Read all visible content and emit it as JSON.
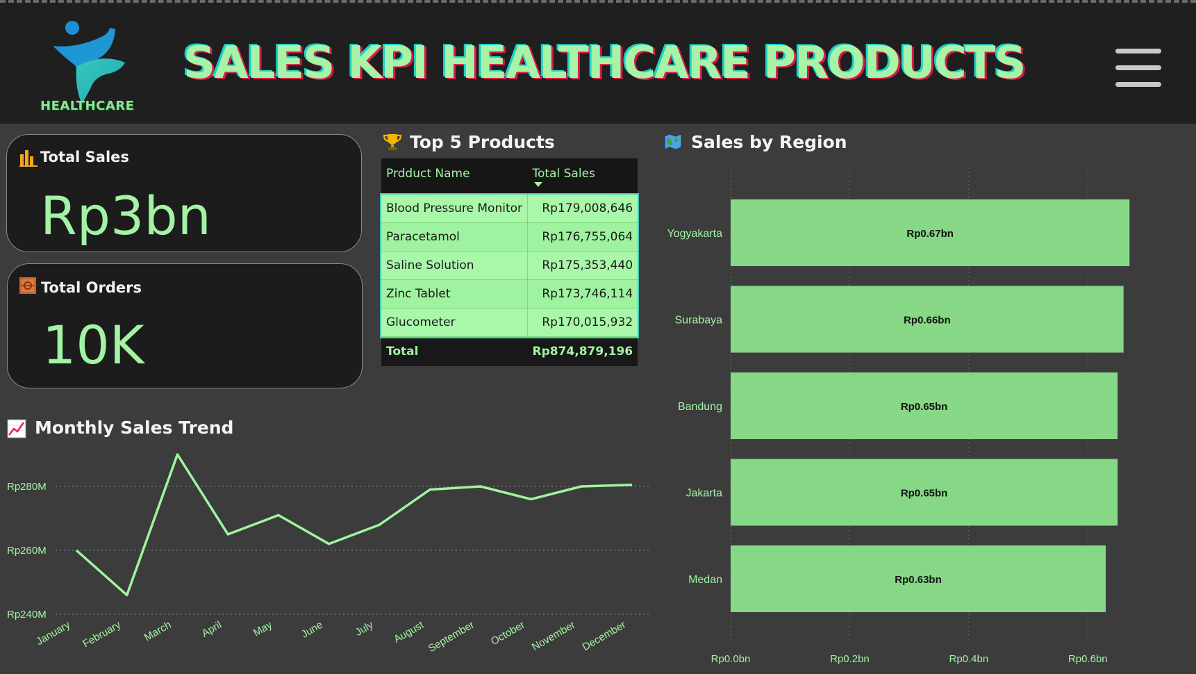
{
  "header": {
    "logo_text": "HEALTHCARE",
    "title": "SALES KPI HEALTHCARE PRODUCTS",
    "menu_icon": "hamburger-menu-icon"
  },
  "kpis": {
    "total_sales": {
      "label": "Total Sales",
      "value": "Rp3bn",
      "icon": "bar-chart-icon"
    },
    "total_orders": {
      "label": "Total Orders",
      "value": "10K",
      "icon": "package-icon"
    }
  },
  "top_products": {
    "title": "Top 5 Products",
    "icon": "trophy-icon",
    "columns": [
      "Prdduct Name",
      "Total Sales"
    ],
    "rows": [
      {
        "name": "Blood Pressure Monitor",
        "sales": "Rp179,008,646"
      },
      {
        "name": "Paracetamol",
        "sales": "Rp176,755,064"
      },
      {
        "name": "Saline Solution",
        "sales": "Rp175,353,440"
      },
      {
        "name": "Zinc Tablet",
        "sales": "Rp173,746,114"
      },
      {
        "name": "Glucometer",
        "sales": "Rp170,015,932"
      }
    ],
    "total_label": "Total",
    "total_value": "Rp874,879,196"
  },
  "monthly_trend": {
    "title": "Monthly Sales Trend",
    "icon": "trend-chart-icon"
  },
  "region": {
    "title": "Sales by Region",
    "icon": "map-icon"
  },
  "colors": {
    "accent": "#a3f3a3",
    "bar": "#86d786",
    "line": "#9ef59e",
    "background": "#3c3c3c",
    "header": "#1f1f1f"
  },
  "chart_data": [
    {
      "type": "line",
      "title": "Monthly Sales Trend",
      "x": [
        "January",
        "February",
        "March",
        "April",
        "May",
        "June",
        "July",
        "August",
        "September",
        "October",
        "November",
        "December"
      ],
      "series": [
        {
          "values": [
            260,
            246,
            290,
            265,
            271,
            262,
            268,
            279,
            280,
            276,
            280,
            280.5
          ]
        }
      ],
      "ylim": [
        240,
        290
      ],
      "yticks": [
        240,
        260,
        280
      ],
      "ytick_labels": [
        "Rp240M",
        "Rp260M",
        "Rp280M"
      ],
      "unit": "M",
      "grid": true
    },
    {
      "type": "bar",
      "orientation": "horizontal",
      "title": "Sales by Region",
      "categories": [
        "Yogyakarta",
        "Surabaya",
        "Bandung",
        "Jakarta",
        "Medan"
      ],
      "values": [
        0.67,
        0.66,
        0.65,
        0.65,
        0.63
      ],
      "value_labels": [
        "Rp0.67bn",
        "Rp0.66bn",
        "Rp0.65bn",
        "Rp0.65bn",
        "Rp0.63bn"
      ],
      "xlim": [
        0,
        0.7
      ],
      "xticks": [
        0,
        0.2,
        0.4,
        0.6
      ],
      "xtick_labels": [
        "Rp0.0bn",
        "Rp0.2bn",
        "Rp0.4bn",
        "Rp0.6bn"
      ],
      "grid": true
    }
  ]
}
